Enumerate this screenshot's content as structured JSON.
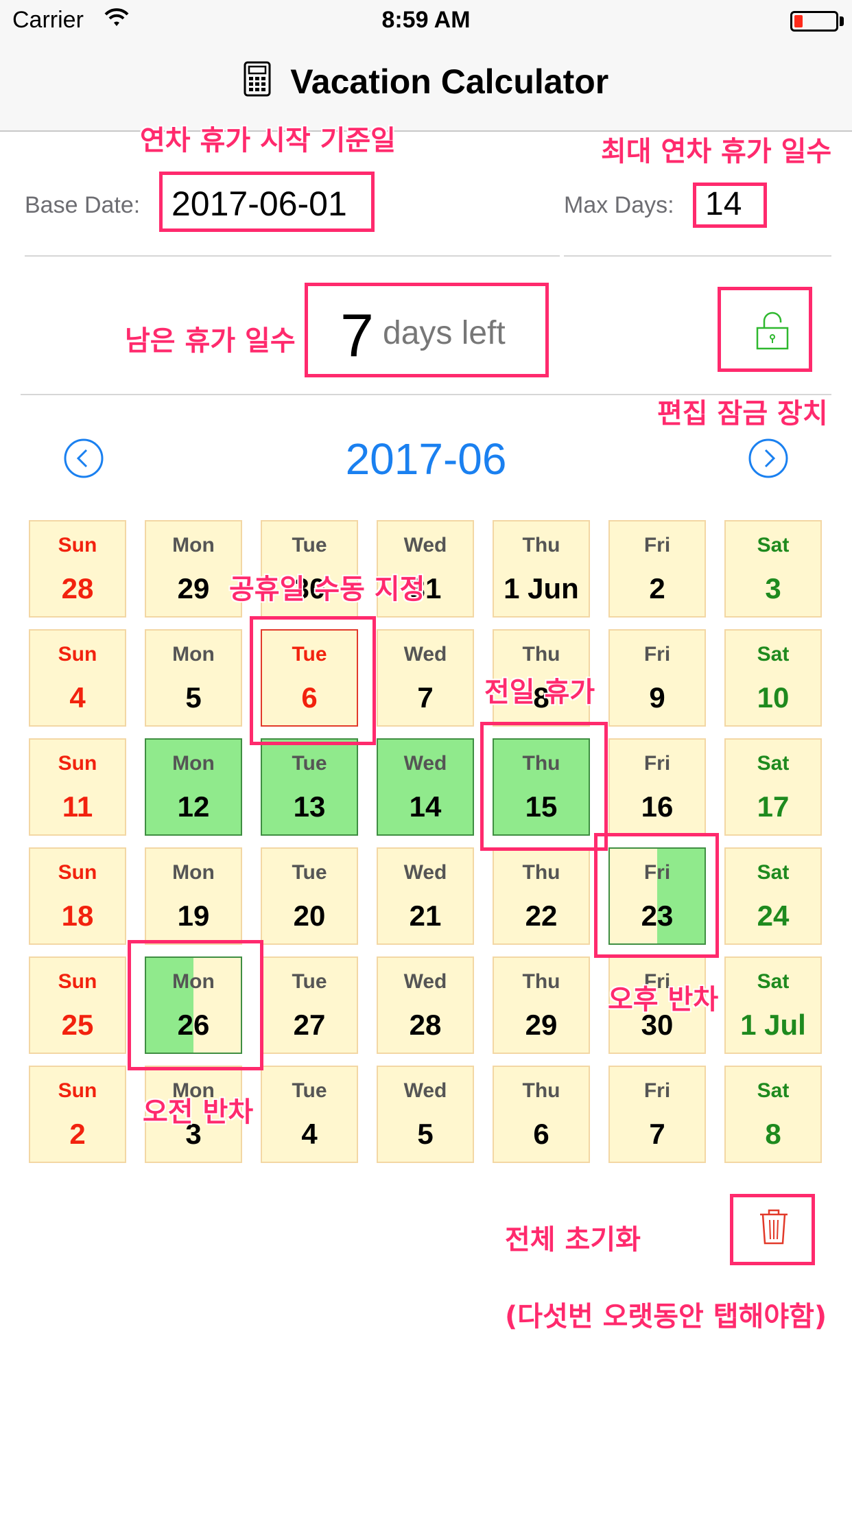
{
  "status_bar": {
    "carrier": "Carrier",
    "time": "8:59 AM"
  },
  "nav": {
    "title": "Vacation Calculator",
    "icon": "calculator-icon"
  },
  "base_date": {
    "label": "Base Date:",
    "value": "2017-06-01"
  },
  "max_days": {
    "label": "Max Days:",
    "value": "14"
  },
  "remaining": {
    "number": "7",
    "text": "days left"
  },
  "month": {
    "title": "2017-06"
  },
  "calendar": {
    "weekdays": [
      "Sun",
      "Mon",
      "Tue",
      "Wed",
      "Thu",
      "Fri",
      "Sat"
    ],
    "weeks": [
      [
        {
          "d": "28"
        },
        {
          "d": "29"
        },
        {
          "d": "30"
        },
        {
          "d": "31"
        },
        {
          "d": "1 Jun"
        },
        {
          "d": "2"
        },
        {
          "d": "3"
        }
      ],
      [
        {
          "d": "4"
        },
        {
          "d": "5"
        },
        {
          "d": "6",
          "state": "holiday"
        },
        {
          "d": "7"
        },
        {
          "d": "8"
        },
        {
          "d": "9"
        },
        {
          "d": "10"
        }
      ],
      [
        {
          "d": "11"
        },
        {
          "d": "12",
          "state": "full"
        },
        {
          "d": "13",
          "state": "full"
        },
        {
          "d": "14",
          "state": "full"
        },
        {
          "d": "15",
          "state": "full"
        },
        {
          "d": "16"
        },
        {
          "d": "17"
        }
      ],
      [
        {
          "d": "18"
        },
        {
          "d": "19"
        },
        {
          "d": "20"
        },
        {
          "d": "21"
        },
        {
          "d": "22"
        },
        {
          "d": "23",
          "state": "pm"
        },
        {
          "d": "24"
        }
      ],
      [
        {
          "d": "25"
        },
        {
          "d": "26",
          "state": "am"
        },
        {
          "d": "27"
        },
        {
          "d": "28"
        },
        {
          "d": "29"
        },
        {
          "d": "30"
        },
        {
          "d": "1 Jul"
        }
      ],
      [
        {
          "d": "2"
        },
        {
          "d": "3"
        },
        {
          "d": "4"
        },
        {
          "d": "5"
        },
        {
          "d": "6"
        },
        {
          "d": "7"
        },
        {
          "d": "8"
        }
      ]
    ]
  },
  "annotations": {
    "base_date": "연차 휴가 시작 기준일",
    "max_days": "최대 연차 휴가 일수",
    "remaining": "남은 휴가 일수",
    "lock": "편집 잠금 장치",
    "holiday": "공휴일 수동 지정",
    "full_day": "전일 휴가",
    "pm_half": "오후 반차",
    "am_half": "오전 반차",
    "reset": "전체 초기화",
    "reset_hint": "(다섯번 오랫동안 탭해야함)"
  },
  "colors": {
    "accent": "#1a80f0",
    "annotation": "#ff2a6d",
    "vacation": "#90ea8c",
    "cell": "#fff7cf",
    "sunday": "#f2220e",
    "saturday": "#1e8a1e"
  },
  "battery_level": 0.2
}
